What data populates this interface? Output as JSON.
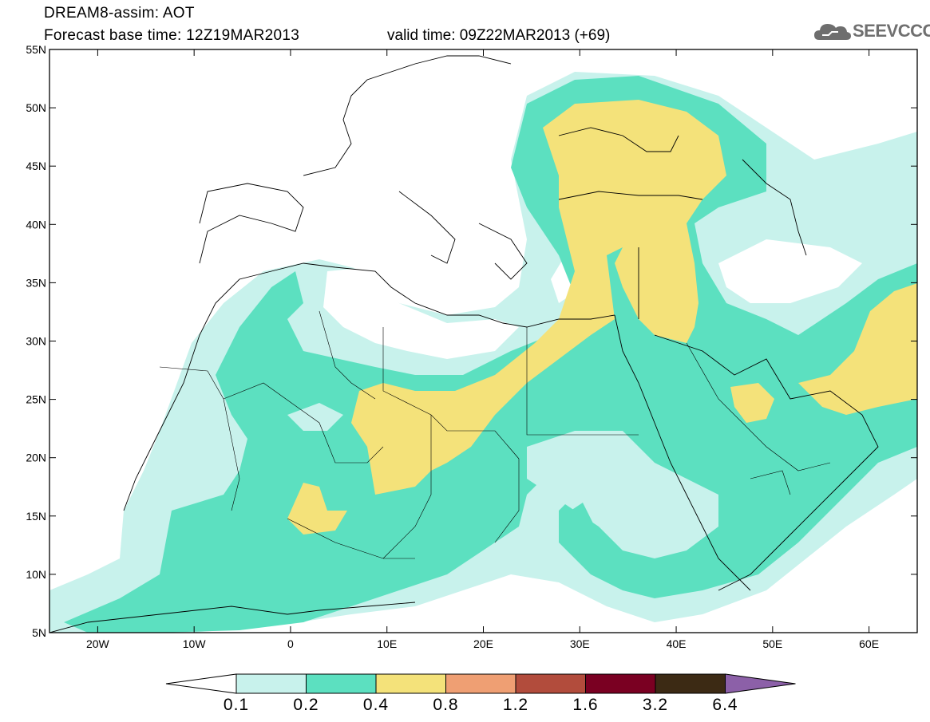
{
  "header": {
    "line1": "DREAM8-assim: AOT",
    "line2": "Forecast base time: 12Z19MAR2013",
    "line3": "valid time: 09Z22MAR2013 (+69)"
  },
  "logo": {
    "text": "SEEVCCC",
    "icon": "cloud-icon"
  },
  "map": {
    "lon_range": [
      -25,
      65
    ],
    "lat_range": [
      5,
      55
    ],
    "lat_ticks": [
      "55N",
      "50N",
      "45N",
      "40N",
      "35N",
      "30N",
      "25N",
      "20N",
      "15N",
      "10N",
      "5N"
    ],
    "lon_ticks": [
      "20W",
      "10W",
      "0",
      "10E",
      "20E",
      "30E",
      "40E",
      "50E",
      "60E"
    ]
  },
  "colorbar": {
    "labels": [
      "0.1",
      "0.2",
      "0.4",
      "0.8",
      "1.2",
      "1.6",
      "3.2",
      "6.4"
    ],
    "colors": [
      "#c8f2ec",
      "#5ce0c0",
      "#f4e27a",
      "#ef9f73",
      "#b24c3c",
      "#7a0022",
      "#3c2a14",
      "#8c60a8"
    ],
    "low_color": "#ffffff"
  }
}
